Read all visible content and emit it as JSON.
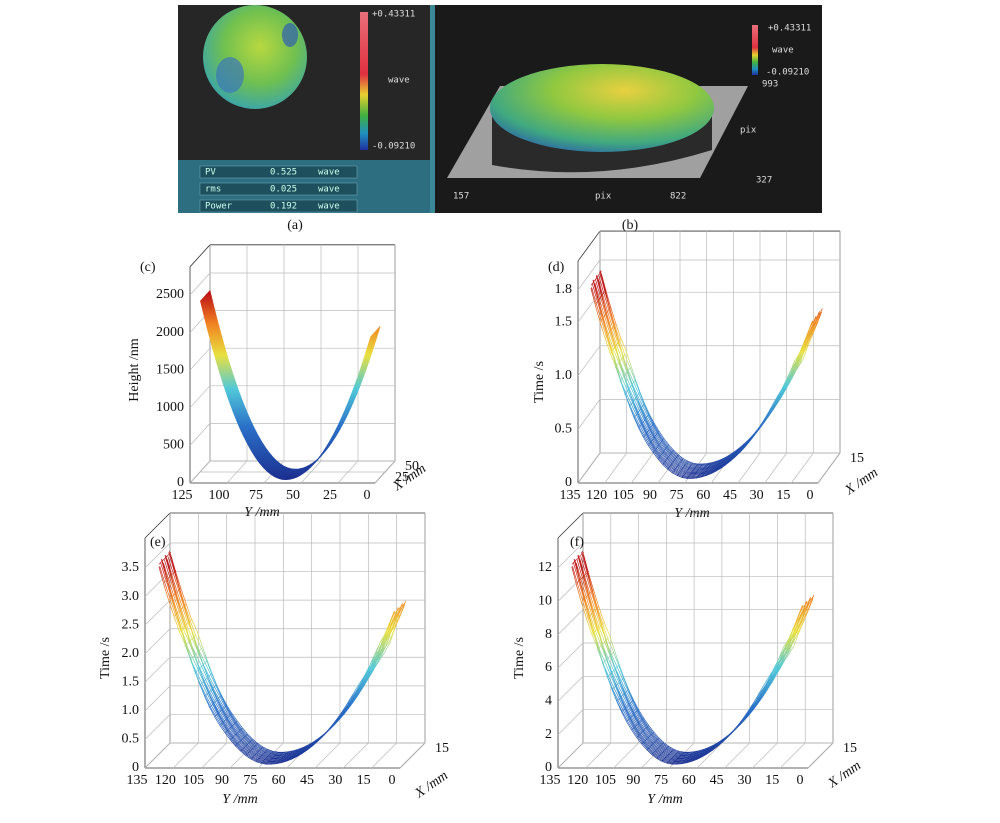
{
  "panel_a": {
    "caption": "(a)",
    "colorbar": {
      "max": "+0.43311",
      "unit": "wave",
      "min": "-0.09210"
    },
    "stats": [
      [
        "PV",
        "0.525",
        "wave"
      ],
      [
        "rms",
        "0.025",
        "wave"
      ],
      [
        "Power",
        "0.192",
        "wave"
      ]
    ]
  },
  "panel_b": {
    "caption": "(b)",
    "colorbar": {
      "max": "+0.43311",
      "unit": "wave",
      "min": "-0.09210",
      "note": "993"
    },
    "axis_right": {
      "label": "pix",
      "tick": "327"
    },
    "axis_bottom": {
      "ticks": [
        "157",
        "822"
      ],
      "label": "pix"
    }
  },
  "plots": [
    {
      "label": "(c)",
      "z_label": "Height /nm",
      "z_ticks": [
        "0",
        "500",
        "1000",
        "1500",
        "2000",
        "2500"
      ],
      "y_label": "Y /mm",
      "y_ticks": [
        "125",
        "100",
        "75",
        "50",
        "25",
        "0"
      ],
      "x_label": "X /mm",
      "x_ticks": [
        "25",
        "50"
      ]
    },
    {
      "label": "(d)",
      "z_label": "Time /s",
      "z_ticks": [
        "0",
        "0.5",
        "1.0",
        "1.5",
        "1.8"
      ],
      "y_label": "Y /mm",
      "y_ticks": [
        "135",
        "120",
        "105",
        "90",
        "75",
        "60",
        "45",
        "30",
        "15",
        "0"
      ],
      "x_label": "X /mm",
      "x_ticks": [
        "15"
      ]
    },
    {
      "label": "(e)",
      "z_label": "Time /s",
      "z_ticks": [
        "0",
        "0.5",
        "1.0",
        "1.5",
        "2.0",
        "2.5",
        "3.0",
        "3.5"
      ],
      "y_label": "Y /mm",
      "y_ticks": [
        "135",
        "120",
        "105",
        "90",
        "75",
        "60",
        "45",
        "30",
        "15",
        "0"
      ],
      "x_label": "X /mm",
      "x_ticks": [
        "15"
      ]
    },
    {
      "label": "(f)",
      "z_label": "Time /s",
      "z_ticks": [
        "0",
        "2",
        "4",
        "6",
        "8",
        "10",
        "12"
      ],
      "y_label": "Y /mm",
      "y_ticks": [
        "135",
        "120",
        "105",
        "90",
        "75",
        "60",
        "45",
        "30",
        "15",
        "0"
      ],
      "x_label": "X /mm",
      "x_ticks": [
        "15"
      ]
    }
  ]
}
